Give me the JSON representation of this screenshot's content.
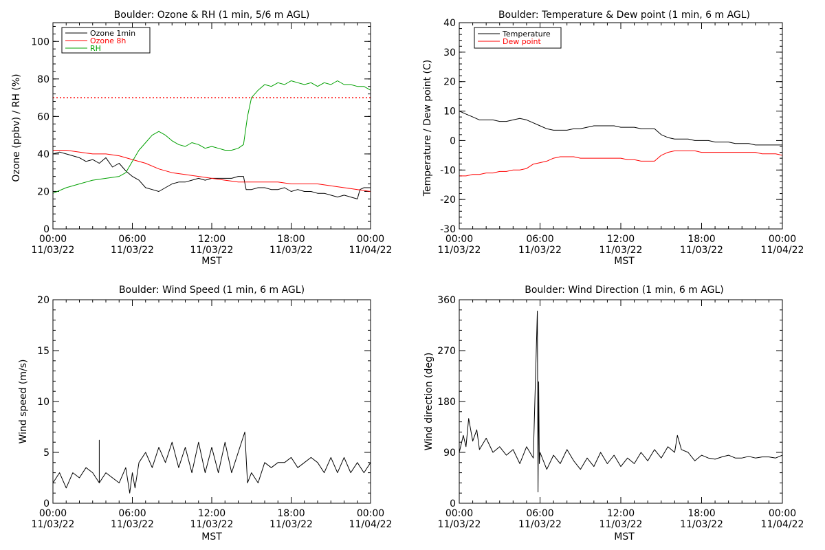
{
  "colors": {
    "ozone_1min": "#000000",
    "ozone_8h": "#ff0000",
    "rh": "#00a000",
    "temperature": "#000000",
    "dew_point": "#ff0000",
    "wind": "#000000",
    "threshold": "#ff0000"
  },
  "x_ticks": [
    {
      "time": "00:00",
      "date": "11/03/22"
    },
    {
      "time": "06:00",
      "date": "11/03/22"
    },
    {
      "time": "12:00",
      "date": "11/03/22"
    },
    {
      "time": "18:00",
      "date": "11/03/22"
    },
    {
      "time": "00:00",
      "date": "11/04/22"
    }
  ],
  "chart_data": [
    {
      "type": "line",
      "title": "Boulder: Ozone & RH (1 min, 5/6 m AGL)",
      "xlabel": "MST",
      "ylabel": "Ozone (ppbv) / RH (%)",
      "xlim": [
        0,
        24
      ],
      "ylim": [
        0,
        110
      ],
      "yticks": [
        0,
        20,
        40,
        60,
        80,
        100
      ],
      "legend": "top-left",
      "threshold": 70,
      "series": [
        {
          "name": "Ozone 1min",
          "x": [
            0,
            0.5,
            1,
            1.5,
            2,
            2.5,
            3,
            3.5,
            4,
            4.5,
            5,
            5.5,
            6,
            6.5,
            7,
            7.5,
            8,
            8.5,
            9,
            9.5,
            10,
            10.5,
            11,
            11.5,
            12,
            12.5,
            13,
            13.5,
            14,
            14.4,
            14.6,
            15,
            15.5,
            16,
            16.5,
            17,
            17.5,
            18,
            18.5,
            19,
            19.5,
            20,
            20.5,
            21,
            21.5,
            22,
            22.5,
            23,
            23.2,
            23.5,
            24
          ],
          "y": [
            40,
            41,
            40,
            39,
            38,
            36,
            37,
            35,
            38,
            33,
            35,
            31,
            28,
            26,
            22,
            21,
            20,
            22,
            24,
            25,
            25,
            26,
            27,
            26,
            27,
            27,
            27,
            27,
            28,
            28,
            21,
            21,
            22,
            22,
            21,
            21,
            22,
            20,
            21,
            20,
            20,
            19,
            19,
            18,
            17,
            18,
            17,
            16,
            21,
            22,
            22
          ]
        },
        {
          "name": "Ozone 8h",
          "x": [
            0,
            1,
            2,
            3,
            4,
            5,
            6,
            7,
            8,
            9,
            10,
            11,
            12,
            13,
            14,
            15,
            16,
            17,
            18,
            19,
            20,
            21,
            22,
            23,
            24
          ],
          "y": [
            42,
            42,
            41,
            40,
            40,
            39,
            37,
            35,
            32,
            30,
            29,
            28,
            27,
            26,
            25,
            25,
            25,
            25,
            24,
            24,
            24,
            23,
            22,
            21,
            20
          ]
        },
        {
          "name": "RH",
          "x": [
            0,
            1,
            2,
            3,
            4,
            5,
            5.5,
            6,
            6.5,
            7,
            7.5,
            8,
            8.5,
            9,
            9.5,
            10,
            10.5,
            11,
            11.5,
            12,
            12.5,
            13,
            13.5,
            14,
            14.4,
            14.7,
            15,
            15.5,
            16,
            16.5,
            17,
            17.5,
            18,
            18.5,
            19,
            19.5,
            20,
            20.5,
            21,
            21.5,
            22,
            22.5,
            23,
            23.5,
            24
          ],
          "y": [
            19,
            22,
            24,
            26,
            27,
            28,
            30,
            36,
            42,
            46,
            50,
            52,
            50,
            47,
            45,
            44,
            46,
            45,
            43,
            44,
            43,
            42,
            42,
            43,
            45,
            60,
            70,
            74,
            77,
            76,
            78,
            77,
            79,
            78,
            77,
            78,
            76,
            78,
            77,
            79,
            77,
            77,
            76,
            76,
            74
          ]
        }
      ]
    },
    {
      "type": "line",
      "title": "Boulder: Temperature & Dew point (1 min, 6 m AGL)",
      "xlabel": "MST",
      "ylabel": "Temperature / Dew point (C)",
      "xlim": [
        0,
        24
      ],
      "ylim": [
        -30,
        40
      ],
      "yticks": [
        -30,
        -20,
        -10,
        0,
        10,
        20,
        30,
        40
      ],
      "legend": "top-left",
      "series": [
        {
          "name": "Temperature",
          "x": [
            0,
            0.5,
            1,
            1.5,
            2,
            2.5,
            3,
            3.5,
            4,
            4.5,
            5,
            5.5,
            6,
            6.5,
            7,
            7.5,
            8,
            8.5,
            9,
            9.5,
            10,
            10.5,
            11,
            11.5,
            12,
            12.5,
            13,
            13.5,
            14,
            14.5,
            15,
            15.5,
            16,
            16.5,
            17,
            17.5,
            18,
            18.5,
            19,
            19.5,
            20,
            20.5,
            21,
            21.5,
            22,
            22.5,
            23,
            23.5,
            24
          ],
          "y": [
            10,
            9,
            8,
            7,
            7,
            7,
            6.5,
            6.5,
            7,
            7.5,
            7,
            6,
            5,
            4,
            3.5,
            3.5,
            3.5,
            4,
            4,
            4.5,
            5,
            5,
            5,
            5,
            4.5,
            4.5,
            4.5,
            4,
            4,
            4,
            2,
            1,
            0.5,
            0.5,
            0.5,
            0,
            0,
            0,
            -0.5,
            -0.5,
            -0.5,
            -1,
            -1,
            -1,
            -1.5,
            -1.5,
            -1.5,
            -1.5,
            -1.5
          ]
        },
        {
          "name": "Dew point",
          "x": [
            0,
            0.5,
            1,
            1.5,
            2,
            2.5,
            3,
            3.5,
            4,
            4.5,
            5,
            5.5,
            6,
            6.5,
            7,
            7.5,
            8,
            8.5,
            9,
            9.5,
            10,
            10.5,
            11,
            11.5,
            12,
            12.5,
            13,
            13.5,
            14,
            14.5,
            15,
            15.5,
            16,
            16.5,
            17,
            17.5,
            18,
            18.5,
            19,
            19.5,
            20,
            20.5,
            21,
            21.5,
            22,
            22.5,
            23,
            23.5,
            24
          ],
          "y": [
            -12,
            -12,
            -11.5,
            -11.5,
            -11,
            -11,
            -10.5,
            -10.5,
            -10,
            -10,
            -9.5,
            -8,
            -7.5,
            -7,
            -6,
            -5.5,
            -5.5,
            -5.5,
            -6,
            -6,
            -6,
            -6,
            -6,
            -6,
            -6,
            -6.5,
            -6.5,
            -7,
            -7,
            -7,
            -5,
            -4,
            -3.5,
            -3.5,
            -3.5,
            -3.5,
            -4,
            -4,
            -4,
            -4,
            -4,
            -4,
            -4,
            -4,
            -4,
            -4.5,
            -4.5,
            -4.5,
            -5
          ]
        }
      ]
    },
    {
      "type": "line",
      "title": "Boulder: Wind Speed (1 min, 6 m AGL)",
      "xlabel": "MST",
      "ylabel": "Wind speed (m/s)",
      "xlim": [
        0,
        24
      ],
      "ylim": [
        0,
        20
      ],
      "yticks": [
        0,
        5,
        10,
        15,
        20
      ],
      "series": [
        {
          "name": "",
          "x": [
            0,
            0.5,
            1,
            1.5,
            2,
            2.5,
            3,
            3.5,
            3.5,
            3.5,
            4,
            4.5,
            5,
            5.5,
            5.8,
            6,
            6.2,
            6.5,
            7,
            7.5,
            8,
            8.5,
            9,
            9.5,
            10,
            10.5,
            11,
            11.5,
            12,
            12.5,
            13,
            13.5,
            14,
            14.5,
            14.7,
            15,
            15.5,
            16,
            16.5,
            17,
            17.5,
            18,
            18.5,
            19,
            19.5,
            20,
            20.5,
            21,
            21.5,
            22,
            22.5,
            23,
            23.5,
            24
          ],
          "y": [
            2,
            3,
            1.5,
            3,
            2.5,
            3.5,
            3,
            2,
            6.2,
            2,
            3,
            2.5,
            2,
            3.5,
            1,
            3,
            1.5,
            4,
            5,
            3.5,
            5.5,
            4,
            6,
            3.5,
            5.5,
            3,
            6,
            3,
            5.5,
            3,
            6,
            3,
            5,
            7,
            2,
            3,
            2,
            4,
            3.5,
            4,
            4,
            4.5,
            3.5,
            4,
            4.5,
            4,
            3,
            4.5,
            3,
            4.5,
            3,
            4,
            3,
            4
          ]
        }
      ]
    },
    {
      "type": "line",
      "title": "Boulder: Wind Direction (1 min, 6 m AGL)",
      "xlabel": "MST",
      "ylabel": "Wind direction (deg)",
      "xlim": [
        0,
        24
      ],
      "ylim": [
        0,
        360
      ],
      "yticks": [
        0,
        90,
        180,
        270,
        360
      ],
      "series": [
        {
          "name": "",
          "x": [
            0,
            0.3,
            0.5,
            0.7,
            1,
            1.3,
            1.5,
            2,
            2.5,
            3,
            3.5,
            4,
            4.5,
            5,
            5.5,
            5.8,
            5.85,
            5.9,
            5.95,
            6,
            6.5,
            7,
            7.5,
            8,
            8.5,
            9,
            9.5,
            10,
            10.5,
            11,
            11.5,
            12,
            12.5,
            13,
            13.5,
            14,
            14.5,
            15,
            15.5,
            16,
            16.2,
            16.5,
            17,
            17.5,
            18,
            18.5,
            19,
            19.5,
            20,
            20.5,
            21,
            21.5,
            22,
            22.5,
            23,
            23.5,
            24
          ],
          "y": [
            90,
            120,
            100,
            150,
            110,
            130,
            95,
            115,
            90,
            100,
            85,
            95,
            70,
            100,
            80,
            340,
            20,
            215,
            70,
            90,
            60,
            85,
            70,
            95,
            75,
            60,
            80,
            65,
            90,
            70,
            85,
            65,
            80,
            70,
            90,
            75,
            95,
            80,
            100,
            90,
            120,
            95,
            90,
            75,
            85,
            80,
            78,
            82,
            85,
            80,
            80,
            83,
            80,
            82,
            82,
            80,
            85
          ]
        }
      ]
    }
  ]
}
